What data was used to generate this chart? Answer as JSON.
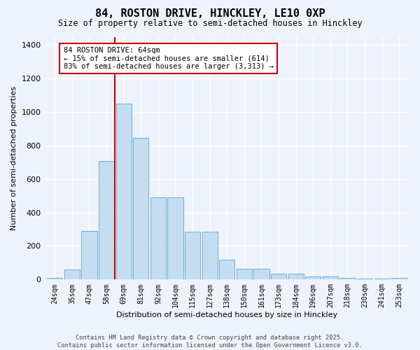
{
  "title_line1": "84, ROSTON DRIVE, HINCKLEY, LE10 0XP",
  "title_line2": "Size of property relative to semi-detached houses in Hinckley",
  "xlabel": "Distribution of semi-detached houses by size in Hinckley",
  "ylabel": "Number of semi-detached properties",
  "categories": [
    "24sqm",
    "35sqm",
    "47sqm",
    "58sqm",
    "69sqm",
    "81sqm",
    "92sqm",
    "104sqm",
    "115sqm",
    "127sqm",
    "138sqm",
    "150sqm",
    "161sqm",
    "173sqm",
    "184sqm",
    "196sqm",
    "207sqm",
    "218sqm",
    "230sqm",
    "241sqm",
    "253sqm"
  ],
  "values": [
    10,
    60,
    290,
    710,
    1050,
    845,
    490,
    490,
    285,
    285,
    120,
    65,
    65,
    35,
    35,
    20,
    20,
    10,
    5,
    5,
    8
  ],
  "bar_color": "#c5ddf0",
  "bar_edge_color": "#6aaed6",
  "vline_x_index": 3.5,
  "vline_color": "#cc0000",
  "annotation_text": "84 ROSTON DRIVE: 64sqm\n← 15% of semi-detached houses are smaller (614)\n83% of semi-detached houses are larger (3,313) →",
  "annotation_box_facecolor": "#ffffff",
  "annotation_box_edgecolor": "#cc0000",
  "ylim": [
    0,
    1450
  ],
  "yticks": [
    0,
    200,
    400,
    600,
    800,
    1000,
    1200,
    1400
  ],
  "background_color": "#eef2fb",
  "grid_color": "#ffffff",
  "footer_line1": "Contains HM Land Registry data © Crown copyright and database right 2025.",
  "footer_line2": "Contains public sector information licensed under the Open Government Licence v3.0."
}
